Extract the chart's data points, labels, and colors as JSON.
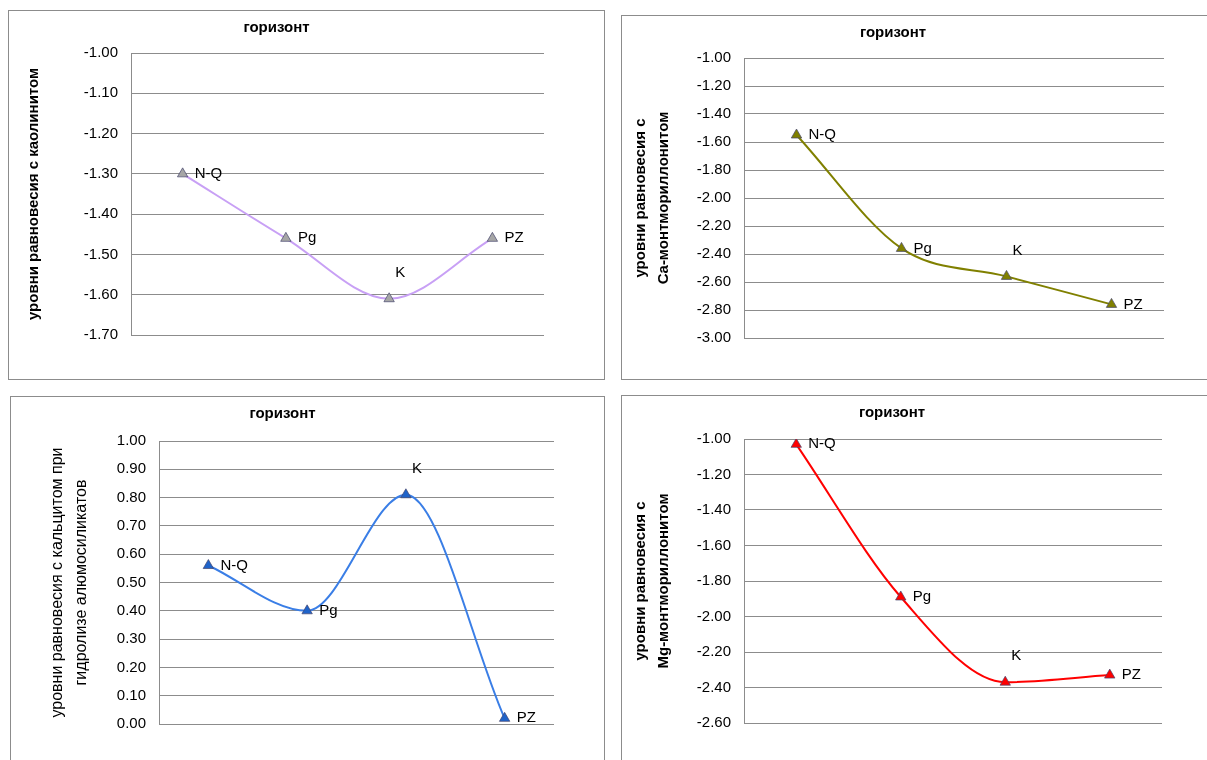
{
  "chart_data": [
    {
      "type": "line",
      "title": "горизонт",
      "ylabel": "уровни равновесия с каолинитом",
      "categories": [
        null,
        null,
        null,
        null
      ],
      "series": [
        {
          "color": "#c8a0f5",
          "colors": [
            "#a6a6a6",
            "#a6a6a6",
            "#a6a6a6",
            "#a6a6a6"
          ],
          "values": [
            -1.3,
            -1.46,
            -1.61,
            -1.46
          ],
          "value_labels": [
            "N-Q",
            "Pg",
            "K",
            "PZ"
          ]
        }
      ],
      "ylim": [
        -1.7,
        -1.0
      ],
      "yticks": [
        {
          "value": -1.0,
          "label": "-1.00"
        },
        {
          "value": -1.1,
          "label": "-1.10"
        },
        {
          "value": -1.2,
          "label": "-1.20"
        },
        {
          "value": -1.3,
          "label": "-1.30"
        },
        {
          "value": -1.4,
          "label": "-1.40"
        },
        {
          "value": -1.5,
          "label": "-1.50"
        },
        {
          "value": -1.6,
          "label": "-1.60"
        },
        {
          "value": -1.7,
          "label": "-1.70"
        }
      ],
      "grid": "y",
      "marker": "triangle"
    },
    {
      "type": "line",
      "title": "горизонт",
      "ylabel": "уровни равновесия с\nCa-монтмориллонитом",
      "categories": [
        null,
        null,
        null,
        null
      ],
      "series": [
        {
          "color": "#808000",
          "colors": [
            "#808000",
            "#808000",
            "#808000",
            "#808000"
          ],
          "values": [
            -1.55,
            -2.36,
            -2.56,
            -2.76
          ],
          "value_labels": [
            "N-Q",
            "Pg",
            "K",
            "PZ"
          ]
        }
      ],
      "ylim": [
        -3.0,
        -1.0
      ],
      "yticks": [
        {
          "value": -1.0,
          "label": "-1.00"
        },
        {
          "value": -1.2,
          "label": "-1.20"
        },
        {
          "value": -1.4,
          "label": "-1.40"
        },
        {
          "value": -1.6,
          "label": "-1.60"
        },
        {
          "value": -1.8,
          "label": "-1.80"
        },
        {
          "value": -2.0,
          "label": "-2.00"
        },
        {
          "value": -2.2,
          "label": "-2.20"
        },
        {
          "value": -2.4,
          "label": "-2.40"
        },
        {
          "value": -2.6,
          "label": "-2.60"
        },
        {
          "value": -2.8,
          "label": "-2.80"
        },
        {
          "value": -3.0,
          "label": "-3.00"
        }
      ],
      "grid": "y",
      "marker": "triangle"
    },
    {
      "type": "line",
      "title": "горизонт",
      "ylabel": "уровни равновесия с кальцитом при\nгидролизе алюмосиликатов",
      "categories": [
        null,
        null,
        null,
        null
      ],
      "series": [
        {
          "color": "#3a7ee6",
          "colors": [
            "#1f63c9",
            "#1f63c9",
            "#1f63c9",
            "#1f63c9"
          ],
          "values": [
            0.56,
            0.4,
            0.81,
            0.02
          ],
          "value_labels": [
            "N-Q",
            "Pg",
            "K",
            "PZ"
          ]
        }
      ],
      "ylim": [
        0,
        1.0
      ],
      "yticks": [
        {
          "value": 0,
          "label": "0.00"
        },
        {
          "value": 0.1,
          "label": "0.10"
        },
        {
          "value": 0.2,
          "label": "0.20"
        },
        {
          "value": 0.3,
          "label": "0.30"
        },
        {
          "value": 0.4,
          "label": "0.40"
        },
        {
          "value": 0.5,
          "label": "0.50"
        },
        {
          "value": 0.6,
          "label": "0.60"
        },
        {
          "value": 0.7,
          "label": "0.70"
        },
        {
          "value": 0.8,
          "label": "0.80"
        },
        {
          "value": 0.9,
          "label": "0.90"
        },
        {
          "value": 1.0,
          "label": "1.00"
        }
      ],
      "grid": "y",
      "marker": "triangle"
    },
    {
      "type": "line",
      "title": "горизонт",
      "ylabel": "уровни равновесия с\nMg-монтмориллонитом",
      "categories": [
        null,
        null,
        null,
        null
      ],
      "series": [
        {
          "color": "#ff0000",
          "colors": [
            "#ff0000",
            "#ff0000",
            "#ff0000",
            "#ff0000"
          ],
          "values": [
            -1.03,
            -1.89,
            -2.37,
            -2.33
          ],
          "value_labels": [
            "N-Q",
            "Pg",
            "K",
            "PZ"
          ]
        }
      ],
      "ylim": [
        -2.6,
        -1.0
      ],
      "yticks": [
        {
          "value": -1.0,
          "label": "-1.00"
        },
        {
          "value": -1.2,
          "label": "-1.20"
        },
        {
          "value": -1.4,
          "label": "-1.40"
        },
        {
          "value": -1.6,
          "label": "-1.60"
        },
        {
          "value": -1.8,
          "label": "-1.80"
        },
        {
          "value": -2.0,
          "label": "-2.00"
        },
        {
          "value": -2.2,
          "label": "-2.20"
        },
        {
          "value": -2.4,
          "label": "-2.40"
        },
        {
          "value": -2.6,
          "label": "-2.60"
        }
      ],
      "grid": "y",
      "marker": "triangle"
    }
  ]
}
